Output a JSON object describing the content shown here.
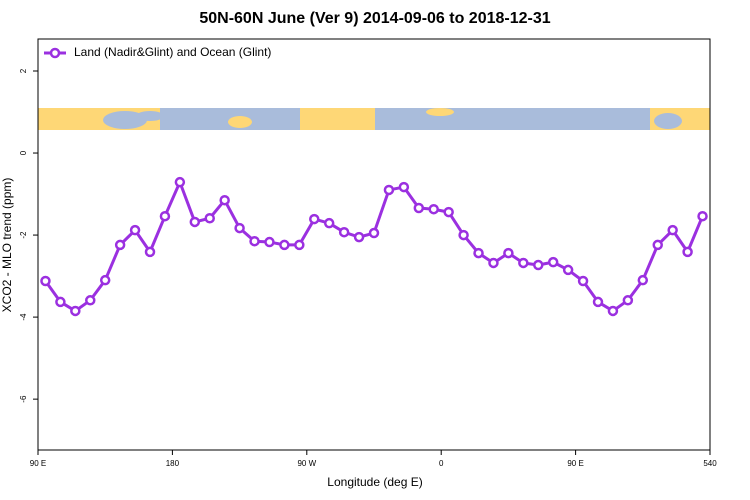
{
  "chart_data": {
    "type": "line",
    "title": "50N-60N June (Ver 9)   2014-09-06 to 2018-12-31",
    "x_label": "Longitude (deg E)",
    "y_label": "XCO2 - MLO trend (ppm)",
    "x": [
      95,
      105,
      115,
      125,
      135,
      145,
      155,
      165,
      175,
      185,
      195,
      205,
      215,
      225,
      235,
      245,
      255,
      265,
      275,
      285,
      295,
      305,
      315,
      325,
      335,
      345,
      355,
      365,
      375,
      385,
      395,
      405,
      415,
      425,
      435,
      445,
      455,
      465,
      475,
      485,
      495,
      505,
      515,
      525,
      535
    ],
    "series": [
      {
        "name": "Land (Nadir&Glint) and Ocean (Glint)",
        "color": "#9b30e0",
        "values": [
          -3.12,
          -3.63,
          -3.85,
          -3.59,
          -3.1,
          -2.24,
          -1.88,
          -2.41,
          -1.54,
          -0.71,
          -1.68,
          -1.59,
          -1.15,
          -1.83,
          -2.15,
          -2.17,
          -2.24,
          -2.24,
          -1.61,
          -1.71,
          -1.93,
          -2.05,
          -1.95,
          -0.9,
          -0.83,
          -1.34,
          -1.37,
          -1.44,
          -2.0,
          -2.44,
          -2.68,
          -2.44,
          -2.68,
          -2.73,
          -2.66,
          -2.85,
          -3.12,
          -3.63,
          -3.85,
          -3.59,
          -3.1,
          -2.24,
          -1.88,
          -2.41,
          -1.54
        ]
      }
    ],
    "xlim": [
      90,
      540
    ],
    "xticks": [
      {
        "value": 90,
        "label": "90 E"
      },
      180,
      {
        "value": 270,
        "label": "90 W"
      },
      {
        "value": 360,
        "label": "0"
      },
      {
        "value": 450,
        "label": "90 E"
      },
      540
    ],
    "ylim": [
      -7.24,
      2.78
    ],
    "yticks": [
      2,
      0,
      -2,
      -4,
      -6
    ],
    "legend": "top left"
  }
}
